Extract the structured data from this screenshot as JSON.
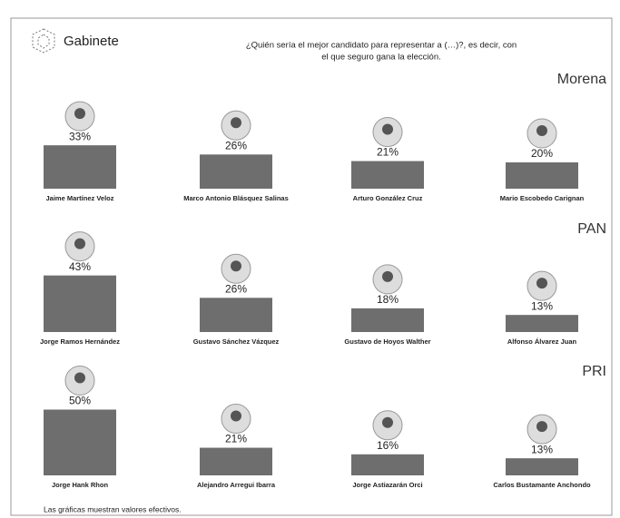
{
  "header": {
    "logo": "Gabinete",
    "question_lines": [
      "¿Quién sería el mejor candidato para representar a (…)?, es decir, con",
      "el que seguro gana la elección."
    ]
  },
  "chart_data": [
    {
      "type": "bar",
      "title": "Morena",
      "color": "#6e6e6e",
      "categories": [
        "Jaime Martínez Veloz",
        "Marco Antonio Blásquez Salinas",
        "Arturo González Cruz",
        "Mario Escobedo Carignan"
      ],
      "values": [
        33,
        26,
        21,
        20
      ],
      "value_labels": [
        "33%",
        "26%",
        "21%",
        "20%"
      ]
    },
    {
      "type": "bar",
      "title": "PAN",
      "color": "#6e6e6e",
      "categories": [
        "Jorge Ramos Hernández",
        "Gustavo Sánchez Vázquez",
        "Gustavo de Hoyos Walther",
        "Alfonso Álvarez Juan"
      ],
      "values": [
        43,
        26,
        18,
        13
      ],
      "value_labels": [
        "43%",
        "26%",
        "18%",
        "13%"
      ]
    },
    {
      "type": "bar",
      "title": "PRI",
      "color": "#6e6e6e",
      "categories": [
        "Jorge Hank Rhon",
        "Alejandro Arregui Ibarra",
        "Jorge Astiazarán Orci",
        "Carlos Bustamante Anchondo"
      ],
      "values": [
        50,
        21,
        16,
        13
      ],
      "value_labels": [
        "50%",
        "21%",
        "16%",
        "13%"
      ]
    }
  ],
  "footer": "Las gráficas muestran valores efectivos."
}
